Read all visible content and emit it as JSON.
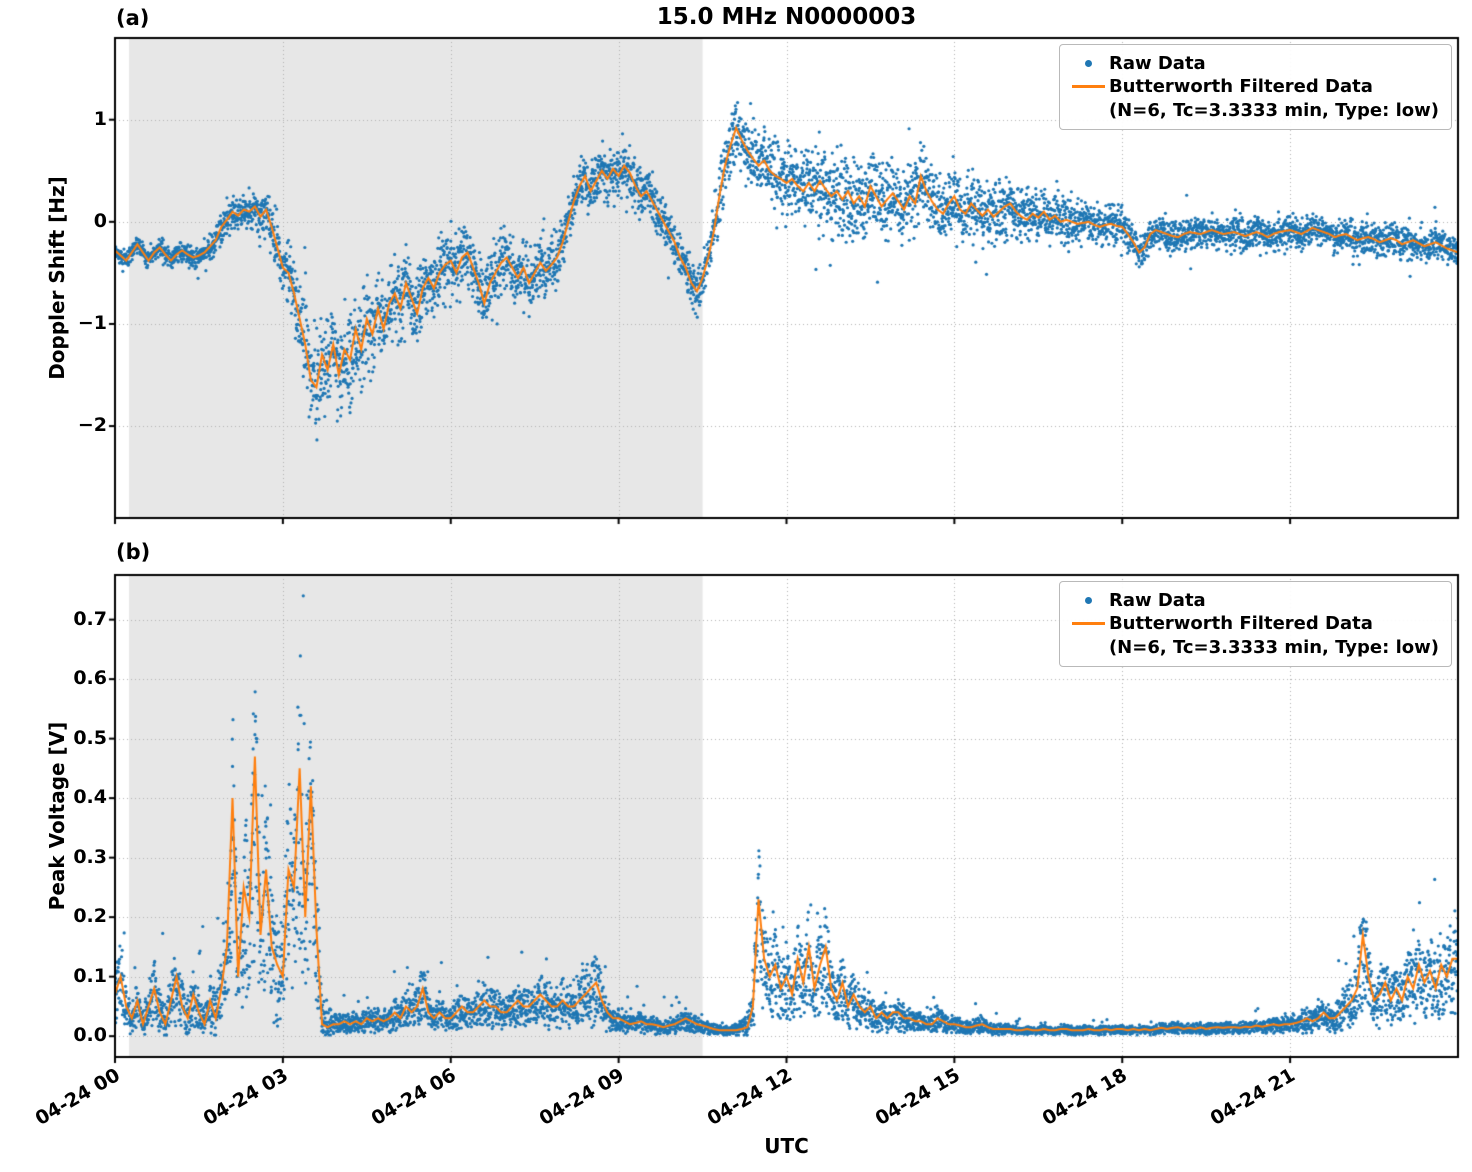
{
  "figure": {
    "title": "15.0 MHz N0000003",
    "xlabel": "UTC"
  },
  "colors": {
    "raw": "#1f77b4",
    "filtered": "#ff7f0e",
    "shade": "#e7e7e7",
    "grid": "#b0b0b0",
    "axis": "#000000",
    "background": "#ffffff"
  },
  "legend": {
    "raw": "Raw Data",
    "filtered1": "Butterworth Filtered Data",
    "filtered2": "(N=6, Tc=3.3333 min, Type: low)"
  },
  "x_axis": {
    "xlim": [
      0,
      24
    ],
    "tick_hours": [
      0,
      3,
      6,
      9,
      12,
      15,
      18,
      21
    ],
    "tick_labels": [
      "04-24 00",
      "04-24 03",
      "04-24 06",
      "04-24 09",
      "04-24 12",
      "04-24 15",
      "04-24 18",
      "04-24 21"
    ],
    "shade_hours": [
      0.25,
      10.5
    ],
    "x_unit": "hours since 04-24 00:00 UTC"
  },
  "chart_data": [
    {
      "type": "scatter",
      "panel": "(a)",
      "title": "15.0 MHz N0000003",
      "ylabel": "Doppler Shift [Hz]",
      "ylim": [
        -2.9,
        1.8
      ],
      "yticks": [
        1,
        0,
        -1,
        -2
      ],
      "ytick_labels": [
        "1",
        "0",
        "−1",
        "−2"
      ],
      "grid": "dotted",
      "legend_position": "upper right",
      "series": [
        {
          "name": "Raw Data",
          "type": "scatter",
          "representation": "dense raw samples synthesized as filtered curve + noise_envelope"
        },
        {
          "name": "Butterworth Filtered Data (N=6, Tc=3.3333 min, Type: low)",
          "type": "line",
          "x0": 0,
          "dx": 0.1,
          "y": [
            -0.28,
            -0.33,
            -0.38,
            -0.3,
            -0.22,
            -0.3,
            -0.38,
            -0.3,
            -0.25,
            -0.32,
            -0.38,
            -0.32,
            -0.28,
            -0.32,
            -0.35,
            -0.33,
            -0.3,
            -0.24,
            -0.18,
            -0.05,
            0.02,
            0.1,
            0.06,
            0.12,
            0.1,
            0.15,
            0.05,
            0.12,
            -0.05,
            -0.25,
            -0.45,
            -0.5,
            -0.7,
            -0.95,
            -1.2,
            -1.55,
            -1.62,
            -1.3,
            -1.45,
            -1.2,
            -1.5,
            -1.25,
            -1.35,
            -1.05,
            -1.25,
            -0.95,
            -1.1,
            -0.85,
            -1.05,
            -0.8,
            -0.7,
            -0.85,
            -0.6,
            -0.75,
            -0.9,
            -0.65,
            -0.55,
            -0.65,
            -0.5,
            -0.42,
            -0.38,
            -0.5,
            -0.35,
            -0.3,
            -0.45,
            -0.6,
            -0.8,
            -0.6,
            -0.5,
            -0.4,
            -0.35,
            -0.45,
            -0.55,
            -0.45,
            -0.6,
            -0.5,
            -0.4,
            -0.48,
            -0.42,
            -0.35,
            -0.2,
            0.0,
            0.2,
            0.35,
            0.45,
            0.3,
            0.4,
            0.5,
            0.42,
            0.52,
            0.45,
            0.55,
            0.48,
            0.35,
            0.25,
            0.3,
            0.2,
            0.1,
            0.0,
            -0.1,
            -0.2,
            -0.35,
            -0.45,
            -0.6,
            -0.68,
            -0.55,
            -0.35,
            -0.1,
            0.25,
            0.55,
            0.75,
            0.92,
            0.8,
            0.7,
            0.62,
            0.55,
            0.6,
            0.5,
            0.45,
            0.42,
            0.38,
            0.42,
            0.35,
            0.3,
            0.38,
            0.3,
            0.4,
            0.32,
            0.25,
            0.3,
            0.22,
            0.3,
            0.18,
            0.25,
            0.15,
            0.35,
            0.25,
            0.15,
            0.22,
            0.28,
            0.2,
            0.12,
            0.25,
            0.18,
            0.45,
            0.3,
            0.2,
            0.12,
            0.08,
            0.18,
            0.25,
            0.12,
            0.08,
            0.18,
            0.12,
            0.06,
            0.12,
            0.05,
            0.1,
            0.15,
            0.18,
            0.1,
            0.05,
            0.02,
            0.08,
            0.04,
            0.1,
            0.02,
            0.06,
            0.0,
            0.02,
            0.0,
            -0.02,
            -0.01,
            0.0,
            -0.03,
            -0.05,
            -0.03,
            -0.02,
            -0.04,
            -0.05,
            -0.12,
            -0.2,
            -0.3,
            -0.25,
            -0.12,
            -0.08,
            -0.1,
            -0.12,
            -0.14,
            -0.15,
            -0.12,
            -0.1,
            -0.11,
            -0.12,
            -0.1,
            -0.08,
            -0.1,
            -0.12,
            -0.11,
            -0.1,
            -0.12,
            -0.14,
            -0.12,
            -0.1,
            -0.12,
            -0.15,
            -0.12,
            -0.1,
            -0.09,
            -0.08,
            -0.1,
            -0.12,
            -0.09,
            -0.06,
            -0.08,
            -0.1,
            -0.12,
            -0.15,
            -0.13,
            -0.12,
            -0.15,
            -0.18,
            -0.16,
            -0.15,
            -0.17,
            -0.2,
            -0.18,
            -0.16,
            -0.18,
            -0.22,
            -0.2,
            -0.18,
            -0.21,
            -0.24,
            -0.22,
            -0.2,
            -0.23,
            -0.26,
            -0.28,
            -0.3
          ]
        }
      ],
      "noise_envelope": {
        "x0": 0,
        "dx": 0.5,
        "amp": [
          0.06,
          0.06,
          0.07,
          0.08,
          0.12,
          0.14,
          0.22,
          0.4,
          0.38,
          0.33,
          0.3,
          0.27,
          0.25,
          0.24,
          0.22,
          0.2,
          0.18,
          0.18,
          0.18,
          0.16,
          0.15,
          0.17,
          0.22,
          0.26,
          0.28,
          0.3,
          0.33,
          0.3,
          0.3,
          0.27,
          0.25,
          0.22,
          0.22,
          0.2,
          0.18,
          0.16,
          0.15,
          0.13,
          0.12,
          0.12,
          0.12,
          0.12,
          0.12,
          0.12,
          0.12,
          0.12,
          0.12,
          0.12,
          0.12
        ]
      },
      "shaded_region_hours": [
        0.25,
        10.5
      ]
    },
    {
      "type": "scatter",
      "panel": "(b)",
      "ylabel": "Peak Voltage [V]",
      "ylim": [
        -0.035,
        0.775
      ],
      "yticks": [
        0,
        0.1,
        0.2,
        0.3,
        0.4,
        0.5,
        0.6,
        0.7
      ],
      "ytick_labels": [
        "0.0",
        "0.1",
        "0.2",
        "0.3",
        "0.4",
        "0.5",
        "0.6",
        "0.7"
      ],
      "grid": "dotted",
      "legend_position": "upper right",
      "series": [
        {
          "name": "Raw Data",
          "type": "scatter",
          "representation": "dense raw samples synthesized as filtered curve + noise_envelope"
        },
        {
          "name": "Butterworth Filtered Data (N=6, Tc=3.3333 min, Type: low)",
          "type": "line",
          "x0": 0,
          "dx": 0.1,
          "y": [
            0.07,
            0.1,
            0.05,
            0.03,
            0.06,
            0.02,
            0.05,
            0.08,
            0.04,
            0.02,
            0.06,
            0.1,
            0.05,
            0.03,
            0.07,
            0.04,
            0.02,
            0.06,
            0.03,
            0.08,
            0.15,
            0.4,
            0.1,
            0.25,
            0.2,
            0.47,
            0.17,
            0.28,
            0.15,
            0.12,
            0.1,
            0.28,
            0.25,
            0.45,
            0.2,
            0.42,
            0.18,
            0.02,
            0.015,
            0.02,
            0.02,
            0.025,
            0.02,
            0.025,
            0.02,
            0.03,
            0.025,
            0.03,
            0.025,
            0.03,
            0.04,
            0.03,
            0.05,
            0.04,
            0.05,
            0.08,
            0.04,
            0.03,
            0.04,
            0.03,
            0.03,
            0.04,
            0.05,
            0.04,
            0.04,
            0.05,
            0.06,
            0.05,
            0.05,
            0.04,
            0.04,
            0.05,
            0.06,
            0.05,
            0.05,
            0.06,
            0.07,
            0.06,
            0.05,
            0.05,
            0.06,
            0.05,
            0.05,
            0.06,
            0.07,
            0.08,
            0.09,
            0.06,
            0.04,
            0.03,
            0.03,
            0.025,
            0.02,
            0.022,
            0.025,
            0.02,
            0.02,
            0.018,
            0.015,
            0.018,
            0.02,
            0.025,
            0.03,
            0.025,
            0.02,
            0.018,
            0.015,
            0.012,
            0.01,
            0.01,
            0.01,
            0.01,
            0.012,
            0.015,
            0.05,
            0.23,
            0.13,
            0.1,
            0.12,
            0.08,
            0.1,
            0.07,
            0.13,
            0.09,
            0.15,
            0.08,
            0.12,
            0.15,
            0.08,
            0.06,
            0.09,
            0.05,
            0.07,
            0.05,
            0.04,
            0.05,
            0.03,
            0.04,
            0.03,
            0.04,
            0.04,
            0.03,
            0.03,
            0.025,
            0.025,
            0.02,
            0.02,
            0.03,
            0.025,
            0.02,
            0.02,
            0.018,
            0.015,
            0.015,
            0.018,
            0.02,
            0.015,
            0.012,
            0.012,
            0.012,
            0.012,
            0.01,
            0.01,
            0.012,
            0.01,
            0.01,
            0.012,
            0.01,
            0.01,
            0.012,
            0.012,
            0.01,
            0.01,
            0.01,
            0.012,
            0.01,
            0.01,
            0.012,
            0.01,
            0.012,
            0.012,
            0.01,
            0.012,
            0.01,
            0.012,
            0.01,
            0.012,
            0.014,
            0.012,
            0.014,
            0.015,
            0.012,
            0.014,
            0.012,
            0.015,
            0.012,
            0.014,
            0.015,
            0.014,
            0.015,
            0.015,
            0.014,
            0.016,
            0.015,
            0.018,
            0.016,
            0.018,
            0.02,
            0.018,
            0.02,
            0.02,
            0.022,
            0.025,
            0.03,
            0.025,
            0.03,
            0.04,
            0.03,
            0.03,
            0.04,
            0.05,
            0.06,
            0.08,
            0.17,
            0.1,
            0.06,
            0.07,
            0.09,
            0.06,
            0.08,
            0.06,
            0.1,
            0.08,
            0.12,
            0.09,
            0.11,
            0.08,
            0.12,
            0.1,
            0.13,
            0.13
          ]
        }
      ],
      "noise_envelope": {
        "x0": 0,
        "dx": 0.5,
        "amp": [
          0.07,
          0.06,
          0.12,
          0.06,
          0.15,
          0.18,
          0.2,
          0.22,
          0.03,
          0.03,
          0.04,
          0.04,
          0.04,
          0.04,
          0.04,
          0.05,
          0.05,
          0.07,
          0.03,
          0.025,
          0.025,
          0.02,
          0.015,
          0.1,
          0.07,
          0.07,
          0.05,
          0.04,
          0.03,
          0.025,
          0.02,
          0.015,
          0.012,
          0.01,
          0.01,
          0.01,
          0.01,
          0.012,
          0.012,
          0.012,
          0.014,
          0.015,
          0.02,
          0.03,
          0.05,
          0.07,
          0.06,
          0.08,
          0.08
        ]
      },
      "shaded_region_hours": [
        0.25,
        10.5
      ]
    }
  ],
  "render": {
    "seed": 20240424,
    "raw_points": 6000,
    "dot_radius": 1.6
  }
}
